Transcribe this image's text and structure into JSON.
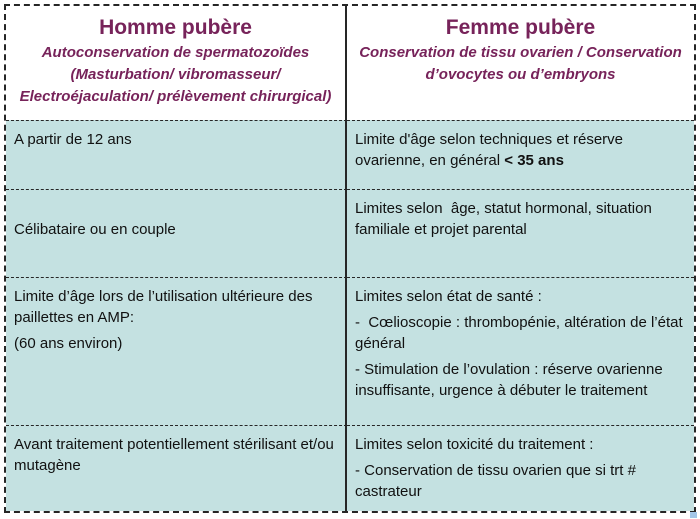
{
  "document": {
    "type": "comparison-table",
    "topic": "Préservation de la fertilité : homme pubère vs femme pubère"
  },
  "header": {
    "left": {
      "title": "Homme pubère",
      "subtitle_lines": [
        "Autoconservation de spermatozoïdes",
        "(Masturbation/ vibromasseur/",
        "Electroéjaculation/ prélèvement chirurgical)"
      ]
    },
    "right": {
      "title": "Femme pubère",
      "subtitle_lines": [
        "Conservation de tissu ovarien / Conservation",
        "d’ovocytes ou d’embryons"
      ]
    }
  },
  "rows": [
    {
      "left": {
        "p1": "A partir de 12 ans"
      },
      "right": {
        "p1_text": "Limite d'âge selon techniques et réserve ovarienne, en général ",
        "p1_bold": "< 35 ans"
      }
    },
    {
      "left": {
        "p1": "Célibataire ou en couple"
      },
      "right": {
        "p1": "Limites selon  âge, statut hormonal, situation familiale et projet parental"
      }
    },
    {
      "left": {
        "p1": "Limite d’âge lors de l’utilisation ultérieure des paillettes en AMP:",
        "p2": "(60 ans environ)"
      },
      "right": {
        "p1": "Limites selon état de santé :",
        "p2": "-  Cœlioscopie : thrombopénie, altération de l’état général",
        "p3": "- Stimulation de l’ovulation : réserve ovarienne insuffisante, urgence à débuter le traitement"
      }
    },
    {
      "left": {
        "p1": "Avant traitement potentiellement stérilisant et/ou mutagène"
      },
      "right": {
        "p1": "Limites selon toxicité du traitement :",
        "p2": "- Conservation de tissu ovarien que si trt # castrateur"
      }
    }
  ],
  "colors": {
    "header_text": "#77235a",
    "cell_background": "#c4e1e1",
    "border": "#262626",
    "body_text": "#111111"
  }
}
